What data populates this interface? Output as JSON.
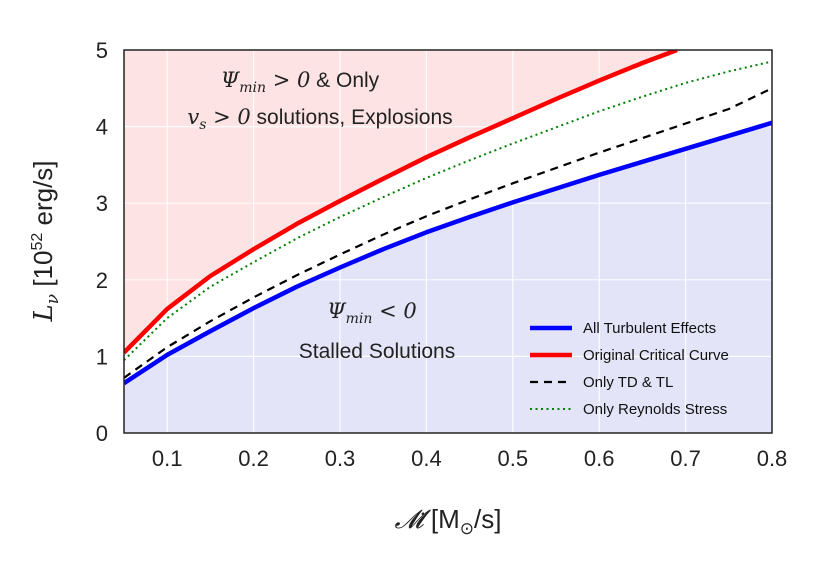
{
  "chart_data": {
    "type": "line",
    "xlabel_math": "𝓜̇",
    "xlabel_unit": " [M",
    "xlabel_sub": "⊙",
    "xlabel_end": "/s]",
    "ylabel_math": "L",
    "ylabel_sub": "ν",
    "ylabel_unit_pre": " [10",
    "ylabel_exp": "52",
    "ylabel_unit_post": " erg/s]",
    "xlim": [
      0.05,
      0.8
    ],
    "ylim": [
      0,
      5
    ],
    "xticks": [
      "0.1",
      "0.2",
      "0.3",
      "0.4",
      "0.5",
      "0.6",
      "0.7",
      "0.8"
    ],
    "yticks": [
      "0",
      "1",
      "2",
      "3",
      "4",
      "5"
    ],
    "grid": true,
    "legend_position": "lower-right",
    "annotations": {
      "explosion_line1_math": "Ψ",
      "explosion_line1_sub": "min",
      "explosion_line1_rest": " > 0",
      "explosion_line1_text": " & Only",
      "explosion_line2_math": "v",
      "explosion_line2_sub": "s",
      "explosion_line2_rest": " > 0",
      "explosion_line2_text": " solutions, Explosions",
      "stalled_line1_math": "Ψ",
      "stalled_line1_sub": "min",
      "stalled_line1_rest": " < 0",
      "stalled_line2_text": "Stalled Solutions"
    },
    "colors": {
      "explosion_region": "#fde3e3",
      "stalled_region": "#e3e4f8",
      "all_turbulent": "#0000ff",
      "original_critical": "#ff0000",
      "td_tl": "#000000",
      "reynolds": "#008000"
    },
    "series": [
      {
        "name": "All Turbulent Effects",
        "style": "solid-thick",
        "color": "#0000ff",
        "x": [
          0.05,
          0.1,
          0.15,
          0.2,
          0.25,
          0.3,
          0.35,
          0.4,
          0.45,
          0.5,
          0.55,
          0.6,
          0.65,
          0.7,
          0.75,
          0.8
        ],
        "y": [
          0.65,
          1.02,
          1.33,
          1.63,
          1.91,
          2.16,
          2.4,
          2.62,
          2.82,
          3.01,
          3.19,
          3.37,
          3.54,
          3.71,
          3.88,
          4.05
        ]
      },
      {
        "name": "Original Critical Curve",
        "style": "solid-thick",
        "color": "#ff0000",
        "x": [
          0.05,
          0.1,
          0.15,
          0.2,
          0.25,
          0.3,
          0.35,
          0.4,
          0.45,
          0.5,
          0.55,
          0.6,
          0.65,
          0.69
        ],
        "y": [
          1.05,
          1.62,
          2.05,
          2.4,
          2.73,
          3.03,
          3.32,
          3.6,
          3.86,
          4.11,
          4.36,
          4.6,
          4.83,
          5.0
        ]
      },
      {
        "name": "Only TD & TL",
        "style": "dashed",
        "color": "#000000",
        "x": [
          0.05,
          0.1,
          0.15,
          0.2,
          0.25,
          0.3,
          0.35,
          0.4,
          0.45,
          0.5,
          0.55,
          0.6,
          0.65,
          0.7,
          0.75,
          0.8
        ],
        "y": [
          0.72,
          1.12,
          1.46,
          1.77,
          2.06,
          2.33,
          2.59,
          2.83,
          3.05,
          3.26,
          3.46,
          3.66,
          3.85,
          4.04,
          4.23,
          4.5
        ]
      },
      {
        "name": "Only Reynolds Stress",
        "style": "dotted",
        "color": "#008000",
        "x": [
          0.05,
          0.1,
          0.15,
          0.2,
          0.25,
          0.3,
          0.35,
          0.4,
          0.45,
          0.5,
          0.55,
          0.6,
          0.65,
          0.7,
          0.75,
          0.8
        ],
        "y": [
          0.95,
          1.5,
          1.91,
          2.23,
          2.54,
          2.82,
          3.08,
          3.33,
          3.56,
          3.78,
          3.99,
          4.2,
          4.39,
          4.57,
          4.72,
          4.85
        ]
      }
    ]
  }
}
